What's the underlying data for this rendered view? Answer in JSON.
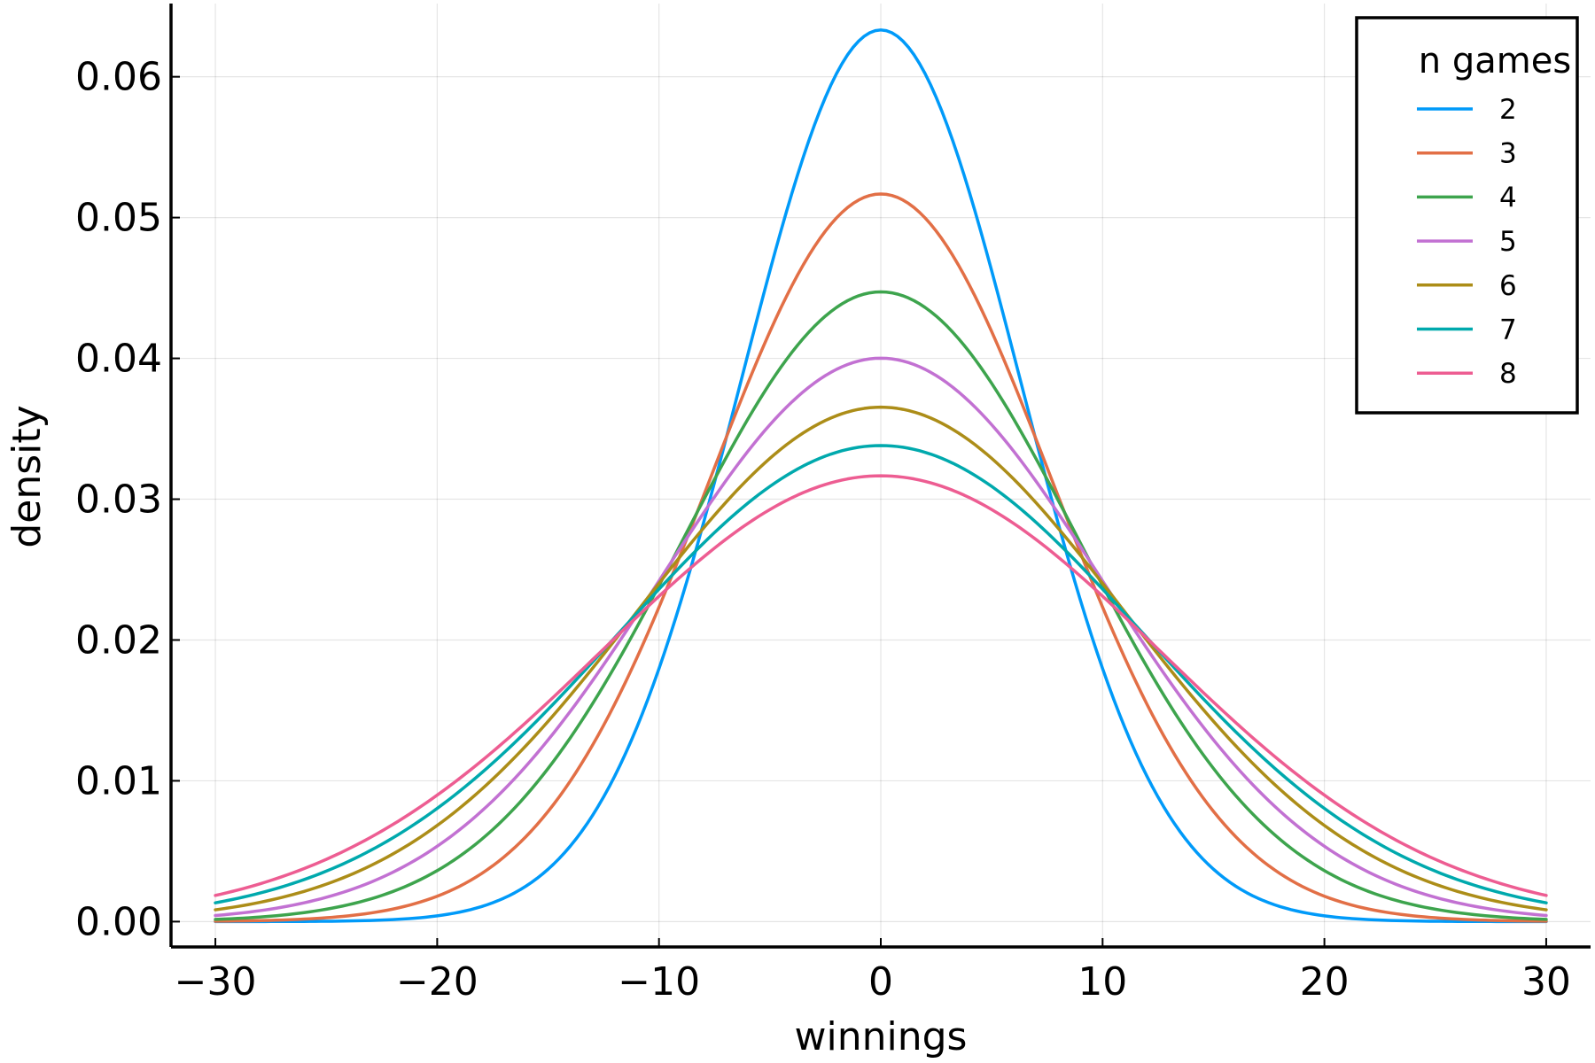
{
  "chart_data": {
    "type": "line",
    "title": "",
    "xlabel": "winnings",
    "ylabel": "density",
    "xlim": [
      -32,
      32
    ],
    "ylim": [
      -0.0018,
      0.0652
    ],
    "xticks": [
      -30,
      -20,
      -10,
      0,
      10,
      20,
      30
    ],
    "xtick_labels": [
      "−30",
      "−20",
      "−10",
      "0",
      "10",
      "20",
      "30"
    ],
    "yticks": [
      0.0,
      0.01,
      0.02,
      0.03,
      0.04,
      0.05,
      0.06
    ],
    "ytick_labels": [
      "0.00",
      "0.01",
      "0.02",
      "0.03",
      "0.04",
      "0.05",
      "0.06"
    ],
    "grid": true,
    "legend": {
      "title": "n games",
      "position": "top-right"
    },
    "x_range": [
      -30,
      30
    ],
    "series": [
      {
        "name": "2",
        "color": "#009af9",
        "mean": 0,
        "sd": 6.3,
        "peak": 0.0633,
        "values_at": {
          "x": [
            -30,
            -20,
            -10,
            0,
            10,
            20,
            30
          ],
          "y": [
            0.0,
            0.0004,
            0.0178,
            0.0633,
            0.0178,
            0.0004,
            0.0
          ]
        }
      },
      {
        "name": "3",
        "color": "#e26f46",
        "mean": 0,
        "sd": 7.72,
        "peak": 0.0517,
        "values_at": {
          "x": [
            -30,
            -20,
            -10,
            0,
            10,
            20,
            30
          ],
          "y": [
            0.0001,
            0.0018,
            0.0224,
            0.0517,
            0.0224,
            0.0018,
            0.0001
          ]
        }
      },
      {
        "name": "4",
        "color": "#3da44d",
        "mean": 0,
        "sd": 8.92,
        "peak": 0.0447,
        "values_at": {
          "x": [
            -30,
            -20,
            -10,
            0,
            10,
            20,
            30
          ],
          "y": [
            0.0002,
            0.0036,
            0.0239,
            0.0447,
            0.0239,
            0.0036,
            0.0002
          ]
        }
      },
      {
        "name": "5",
        "color": "#c271d2",
        "mean": 0,
        "sd": 9.97,
        "peak": 0.04,
        "values_at": {
          "x": [
            -30,
            -20,
            -10,
            0,
            10,
            20,
            30
          ],
          "y": [
            0.0004,
            0.0054,
            0.0242,
            0.04,
            0.0242,
            0.0054,
            0.0004
          ]
        }
      },
      {
        "name": "6",
        "color": "#ac8d18",
        "mean": 0,
        "sd": 10.92,
        "peak": 0.0365,
        "values_at": {
          "x": [
            -30,
            -20,
            -10,
            0,
            10,
            20,
            30
          ],
          "y": [
            0.0009,
            0.0068,
            0.0241,
            0.0365,
            0.0241,
            0.0068,
            0.0009
          ]
        }
      },
      {
        "name": "7",
        "color": "#00a9ad",
        "mean": 0,
        "sd": 11.8,
        "peak": 0.0338,
        "values_at": {
          "x": [
            -30,
            -20,
            -10,
            0,
            10,
            20,
            30
          ],
          "y": [
            0.0014,
            0.008,
            0.0237,
            0.0338,
            0.0237,
            0.008,
            0.0014
          ]
        }
      },
      {
        "name": "8",
        "color": "#ed5d92",
        "mean": 0,
        "sd": 12.6,
        "peak": 0.0316,
        "values_at": {
          "x": [
            -30,
            -20,
            -10,
            0,
            10,
            20,
            30
          ],
          "y": [
            0.0019,
            0.009,
            0.0232,
            0.0316,
            0.0232,
            0.009,
            0.0019
          ]
        }
      }
    ]
  }
}
